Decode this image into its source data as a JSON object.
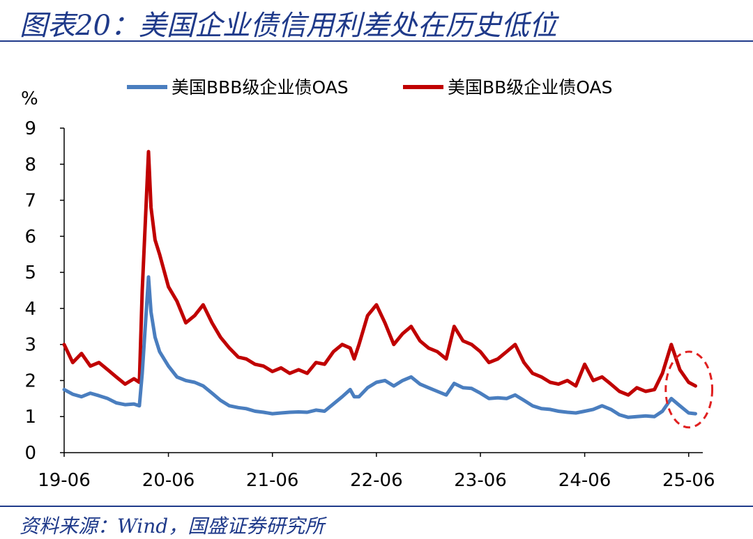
{
  "title": "图表20：美国企业债信用利差处在历史低位",
  "source": "资料来源：Wind，国盛证券研究所",
  "colors": {
    "title": "#1f3a8a",
    "bbb": "#4a7ebf",
    "bb": "#c00000",
    "highlight": "#e02020"
  },
  "chart_data": {
    "type": "line",
    "ylabel": "%",
    "ylim": [
      0,
      9
    ],
    "yticks": [
      "0",
      "1",
      "2",
      "3",
      "4",
      "5",
      "6",
      "7",
      "8",
      "9"
    ],
    "xlim": [
      "2019-06",
      "2025-07"
    ],
    "xticks": [
      "19-06",
      "20-06",
      "21-06",
      "22-06",
      "23-06",
      "24-06",
      "25-06"
    ],
    "legend_position": "top-center",
    "grid": false,
    "series": [
      {
        "name": "美国BBB级企业债OAS",
        "color": "#4a7ebf",
        "points": [
          [
            "2019-06",
            1.75
          ],
          [
            "2019-07",
            1.62
          ],
          [
            "2019-08",
            1.55
          ],
          [
            "2019-09",
            1.65
          ],
          [
            "2019-10",
            1.58
          ],
          [
            "2019-11",
            1.5
          ],
          [
            "2019-12",
            1.38
          ],
          [
            "2020-01",
            1.33
          ],
          [
            "2020-02",
            1.35
          ],
          [
            "2020-02-20",
            1.3
          ],
          [
            "2020-03",
            2.2
          ],
          [
            "2020-03-23",
            4.87
          ],
          [
            "2020-04",
            3.9
          ],
          [
            "2020-04-15",
            3.2
          ],
          [
            "2020-05",
            2.8
          ],
          [
            "2020-06",
            2.4
          ],
          [
            "2020-07",
            2.1
          ],
          [
            "2020-08",
            2.0
          ],
          [
            "2020-09",
            1.95
          ],
          [
            "2020-10",
            1.85
          ],
          [
            "2020-11",
            1.65
          ],
          [
            "2020-12",
            1.45
          ],
          [
            "2021-01",
            1.3
          ],
          [
            "2021-02",
            1.25
          ],
          [
            "2021-03",
            1.22
          ],
          [
            "2021-04",
            1.15
          ],
          [
            "2021-05",
            1.12
          ],
          [
            "2021-06",
            1.08
          ],
          [
            "2021-07",
            1.1
          ],
          [
            "2021-08",
            1.12
          ],
          [
            "2021-09",
            1.13
          ],
          [
            "2021-10",
            1.12
          ],
          [
            "2021-11",
            1.18
          ],
          [
            "2021-12",
            1.15
          ],
          [
            "2022-01",
            1.35
          ],
          [
            "2022-02",
            1.55
          ],
          [
            "2022-03",
            1.75
          ],
          [
            "2022-03-15",
            1.55
          ],
          [
            "2022-04",
            1.55
          ],
          [
            "2022-05",
            1.8
          ],
          [
            "2022-06",
            1.95
          ],
          [
            "2022-07",
            2.0
          ],
          [
            "2022-08",
            1.85
          ],
          [
            "2022-09",
            2.0
          ],
          [
            "2022-10",
            2.1
          ],
          [
            "2022-11",
            1.9
          ],
          [
            "2022-12",
            1.8
          ],
          [
            "2023-01",
            1.7
          ],
          [
            "2023-02",
            1.6
          ],
          [
            "2023-03",
            1.92
          ],
          [
            "2023-04",
            1.8
          ],
          [
            "2023-05",
            1.78
          ],
          [
            "2023-06",
            1.65
          ],
          [
            "2023-07",
            1.5
          ],
          [
            "2023-08",
            1.52
          ],
          [
            "2023-09",
            1.5
          ],
          [
            "2023-10",
            1.6
          ],
          [
            "2023-11",
            1.45
          ],
          [
            "2023-12",
            1.3
          ],
          [
            "2024-01",
            1.22
          ],
          [
            "2024-02",
            1.2
          ],
          [
            "2024-03",
            1.15
          ],
          [
            "2024-04",
            1.12
          ],
          [
            "2024-05",
            1.1
          ],
          [
            "2024-06",
            1.15
          ],
          [
            "2024-07",
            1.2
          ],
          [
            "2024-08",
            1.3
          ],
          [
            "2024-09",
            1.2
          ],
          [
            "2024-10",
            1.05
          ],
          [
            "2024-11",
            0.98
          ],
          [
            "2024-12",
            1.0
          ],
          [
            "2025-01",
            1.02
          ],
          [
            "2025-02",
            1.0
          ],
          [
            "2025-03",
            1.15
          ],
          [
            "2025-04",
            1.5
          ],
          [
            "2025-05",
            1.3
          ],
          [
            "2025-06",
            1.1
          ],
          [
            "2025-06-25",
            1.08
          ]
        ]
      },
      {
        "name": "美国BB级企业债OAS",
        "color": "#c00000",
        "points": [
          [
            "2019-06",
            3.0
          ],
          [
            "2019-07",
            2.5
          ],
          [
            "2019-08",
            2.75
          ],
          [
            "2019-09",
            2.4
          ],
          [
            "2019-10",
            2.5
          ],
          [
            "2019-11",
            2.3
          ],
          [
            "2019-12",
            2.1
          ],
          [
            "2020-01",
            1.9
          ],
          [
            "2020-02",
            2.05
          ],
          [
            "2020-02-20",
            1.95
          ],
          [
            "2020-03",
            4.5
          ],
          [
            "2020-03-23",
            8.35
          ],
          [
            "2020-04",
            6.8
          ],
          [
            "2020-04-15",
            5.9
          ],
          [
            "2020-05",
            5.5
          ],
          [
            "2020-06",
            4.6
          ],
          [
            "2020-07",
            4.2
          ],
          [
            "2020-08",
            3.6
          ],
          [
            "2020-09",
            3.8
          ],
          [
            "2020-10",
            4.1
          ],
          [
            "2020-11",
            3.6
          ],
          [
            "2020-12",
            3.2
          ],
          [
            "2021-01",
            2.9
          ],
          [
            "2021-02",
            2.65
          ],
          [
            "2021-03",
            2.6
          ],
          [
            "2021-04",
            2.45
          ],
          [
            "2021-05",
            2.4
          ],
          [
            "2021-06",
            2.25
          ],
          [
            "2021-07",
            2.35
          ],
          [
            "2021-08",
            2.2
          ],
          [
            "2021-09",
            2.3
          ],
          [
            "2021-10",
            2.2
          ],
          [
            "2021-11",
            2.5
          ],
          [
            "2021-12",
            2.45
          ],
          [
            "2022-01",
            2.8
          ],
          [
            "2022-02",
            3.0
          ],
          [
            "2022-03",
            2.9
          ],
          [
            "2022-03-15",
            2.6
          ],
          [
            "2022-04",
            3.0
          ],
          [
            "2022-05",
            3.8
          ],
          [
            "2022-06",
            4.1
          ],
          [
            "2022-07",
            3.6
          ],
          [
            "2022-08",
            3.0
          ],
          [
            "2022-09",
            3.3
          ],
          [
            "2022-10",
            3.5
          ],
          [
            "2022-11",
            3.1
          ],
          [
            "2022-12",
            2.9
          ],
          [
            "2023-01",
            2.8
          ],
          [
            "2023-02",
            2.6
          ],
          [
            "2023-03",
            3.5
          ],
          [
            "2023-04",
            3.1
          ],
          [
            "2023-05",
            3.0
          ],
          [
            "2023-06",
            2.8
          ],
          [
            "2023-07",
            2.5
          ],
          [
            "2023-08",
            2.6
          ],
          [
            "2023-09",
            2.8
          ],
          [
            "2023-10",
            3.0
          ],
          [
            "2023-11",
            2.5
          ],
          [
            "2023-12",
            2.2
          ],
          [
            "2024-01",
            2.1
          ],
          [
            "2024-02",
            1.95
          ],
          [
            "2024-03",
            1.9
          ],
          [
            "2024-04",
            2.0
          ],
          [
            "2024-05",
            1.85
          ],
          [
            "2024-06",
            2.45
          ],
          [
            "2024-07",
            2.0
          ],
          [
            "2024-08",
            2.1
          ],
          [
            "2024-09",
            1.9
          ],
          [
            "2024-10",
            1.7
          ],
          [
            "2024-11",
            1.6
          ],
          [
            "2024-12",
            1.8
          ],
          [
            "2025-01",
            1.7
          ],
          [
            "2025-02",
            1.75
          ],
          [
            "2025-03",
            2.2
          ],
          [
            "2025-04",
            3.0
          ],
          [
            "2025-05",
            2.3
          ],
          [
            "2025-06",
            1.95
          ],
          [
            "2025-06-25",
            1.85
          ]
        ]
      }
    ],
    "annotations": [
      {
        "type": "dashed-ellipse",
        "around": [
          "2025-04",
          "2025-06-25"
        ],
        "color": "#e02020"
      }
    ]
  }
}
